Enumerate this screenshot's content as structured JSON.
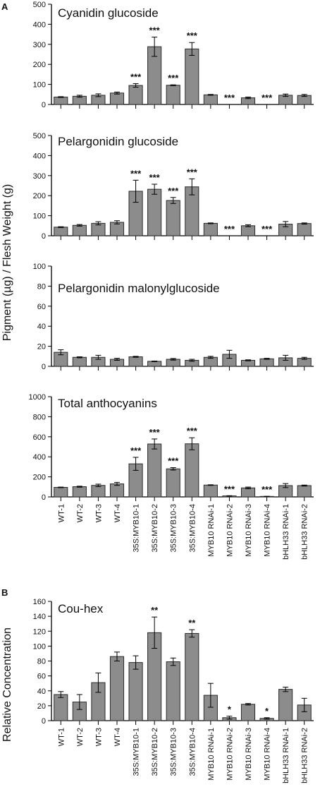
{
  "figure": {
    "panel_a_letter": "A",
    "panel_b_letter": "B",
    "ylabel_a": "Pigment (µg) / Flesh Weight (g)",
    "ylabel_b": "Relative Concentration"
  },
  "chart_data": [
    {
      "type": "bar",
      "title": "Cyanidin glucoside",
      "categories": [
        "WT-1",
        "WT-2",
        "WT-3",
        "WT-4",
        "35S:MYB10-1",
        "35S:MYB10-2",
        "35S:MYB10-3",
        "35S:MYB10-4",
        "MYB10 RNAi-1",
        "MYB10 RNAi-2",
        "MYB10 RNAi-3",
        "MYB10 RNAi-4",
        "bHLH33 RNAi-1",
        "bHLH33 RNAi-2"
      ],
      "values": [
        37,
        41,
        46,
        57,
        95,
        288,
        96,
        277,
        48,
        0,
        33,
        0,
        46,
        45
      ],
      "errors": [
        2,
        5,
        7,
        5,
        9,
        48,
        2,
        32,
        2,
        0,
        4,
        0,
        6,
        5
      ],
      "significance": [
        "",
        "",
        "",
        "",
        "***",
        "***",
        "***",
        "***",
        "",
        "***",
        "",
        "***",
        "",
        ""
      ],
      "yticks": [
        0,
        100,
        200,
        300,
        400,
        500
      ],
      "ylim": [
        0,
        500
      ]
    },
    {
      "type": "bar",
      "title": "Pelargonidin glucoside",
      "categories": [
        "WT-1",
        "WT-2",
        "WT-3",
        "WT-4",
        "35S:MYB10-1",
        "35S:MYB10-2",
        "35S:MYB10-3",
        "35S:MYB10-4",
        "MYB10 RNAi-1",
        "MYB10 RNAi-2",
        "MYB10 RNAi-3",
        "MYB10 RNAi-4",
        "bHLH33 RNAi-1",
        "bHLH33 RNAi-2"
      ],
      "values": [
        43,
        52,
        62,
        67,
        222,
        232,
        176,
        244,
        62,
        0,
        50,
        0,
        58,
        61
      ],
      "errors": [
        2,
        4,
        8,
        8,
        55,
        25,
        15,
        40,
        2,
        0,
        5,
        0,
        13,
        3
      ],
      "significance": [
        "",
        "",
        "",
        "",
        "***",
        "***",
        "***",
        "***",
        "",
        "***",
        "",
        "***",
        "",
        ""
      ],
      "yticks": [
        0,
        100,
        200,
        300,
        400,
        500
      ],
      "ylim": [
        0,
        500
      ]
    },
    {
      "type": "bar",
      "title": "Pelargonidin malonylglucoside",
      "categories": [
        "WT-1",
        "WT-2",
        "WT-3",
        "WT-4",
        "35S:MYB10-1",
        "35S:MYB10-2",
        "35S:MYB10-3",
        "35S:MYB10-4",
        "MYB10 RNAi-1",
        "MYB10 RNAi-2",
        "MYB10 RNAi-3",
        "MYB10 RNAi-4",
        "bHLH33 RNAi-1",
        "bHLH33 RNAi-2"
      ],
      "values": [
        14,
        9,
        9,
        7,
        9.5,
        5,
        7,
        6,
        9,
        12,
        6,
        7.5,
        8.5,
        8
      ],
      "errors": [
        2.5,
        0.5,
        2,
        1,
        0.5,
        0.3,
        0.8,
        1,
        1,
        4,
        0.5,
        0.5,
        2.5,
        1
      ],
      "significance": [
        "",
        "",
        "",
        "",
        "",
        "",
        "",
        "",
        "",
        "",
        "",
        "",
        "",
        ""
      ],
      "yticks": [
        0,
        20,
        40,
        60,
        80,
        100
      ],
      "ylim": [
        0,
        100
      ]
    },
    {
      "type": "bar",
      "title": "Total anthocyanins",
      "categories": [
        "WT-1",
        "WT-2",
        "WT-3",
        "WT-4",
        "35S:MYB10-1",
        "35S:MYB10-2",
        "35S:MYB10-3",
        "35S:MYB10-4",
        "MYB10 RNAi-1",
        "MYB10 RNAi-2",
        "MYB10 RNAi-3",
        "MYB10 RNAi-4",
        "bHLH33 RNAi-1",
        "bHLH33 RNAi-2"
      ],
      "values": [
        95,
        102,
        115,
        130,
        330,
        528,
        280,
        530,
        118,
        10,
        90,
        5,
        113,
        113
      ],
      "errors": [
        3,
        5,
        12,
        15,
        65,
        50,
        12,
        60,
        3,
        2,
        8,
        1,
        20,
        5
      ],
      "significance": [
        "",
        "",
        "",
        "",
        "***",
        "***",
        "***",
        "***",
        "",
        "***",
        "",
        "***",
        "",
        ""
      ],
      "yticks": [
        0,
        200,
        400,
        600,
        800,
        1000
      ],
      "ylim": [
        0,
        1000
      ]
    },
    {
      "type": "bar",
      "title": "Cou-hex",
      "categories": [
        "WT-1",
        "WT-2",
        "WT-3",
        "WT-4",
        "35S:MYB10-1",
        "35S:MYB10-2",
        "35S:MYB10-3",
        "35S:MYB10-4",
        "MYB10 RNAi-1",
        "MYB10 RNAi-2",
        "MYB10 RNAi-3",
        "MYB10 RNAi-4",
        "bHLH33 RNAi-1",
        "bHLH33 RNAi-2"
      ],
      "values": [
        35,
        25,
        51,
        86,
        78,
        118,
        79,
        117,
        34,
        4,
        22,
        3,
        42,
        21
      ],
      "errors": [
        4,
        10,
        13,
        6,
        9,
        21,
        5,
        5,
        16,
        2,
        1,
        1,
        3,
        9
      ],
      "significance": [
        "",
        "",
        "",
        "",
        "",
        "**",
        "",
        "**",
        "",
        "*",
        "",
        "*",
        "",
        ""
      ],
      "yticks": [
        0,
        20,
        40,
        60,
        80,
        100,
        120,
        140,
        160
      ],
      "ylim": [
        0,
        160
      ]
    }
  ]
}
